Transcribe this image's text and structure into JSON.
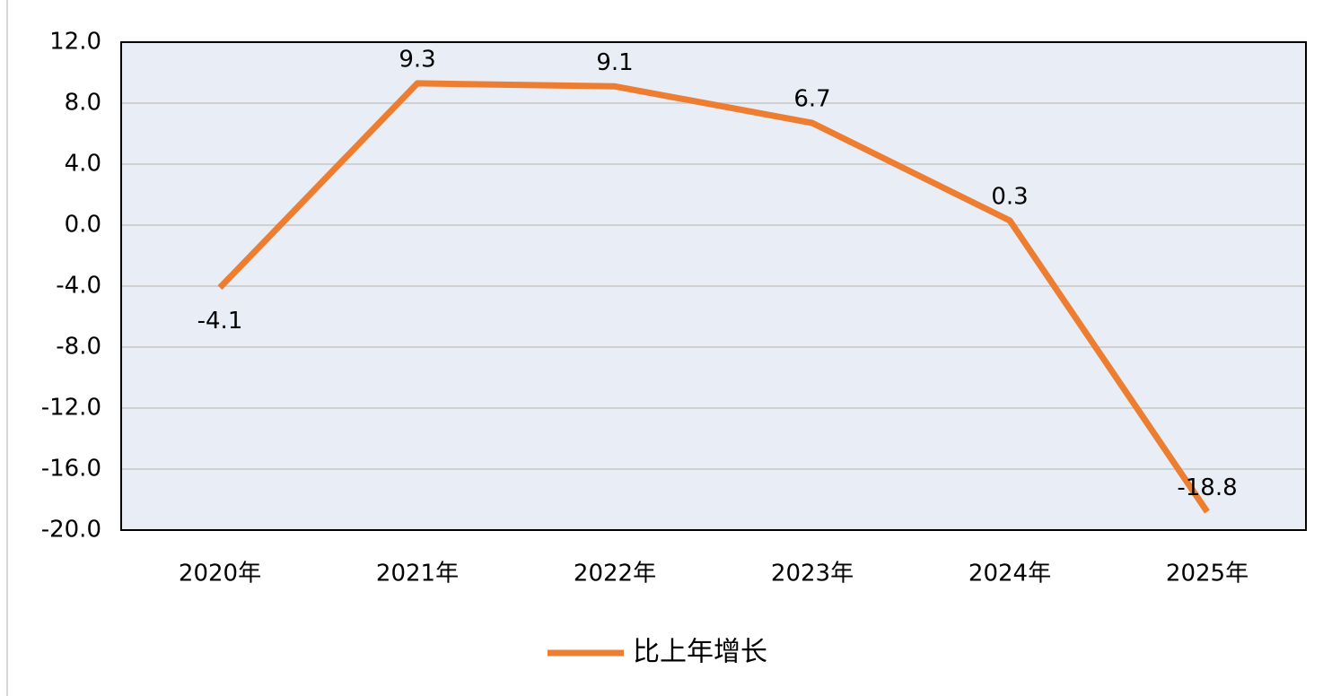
{
  "chart_data": {
    "type": "line",
    "categories": [
      "2020年",
      "2021年",
      "2022年",
      "2023年",
      "2024年",
      "2025年"
    ],
    "series": [
      {
        "name": "比上年增长",
        "color": "#ed7d31",
        "values": [
          -4.1,
          9.3,
          9.1,
          6.7,
          0.3,
          -18.8
        ]
      }
    ],
    "ylim": [
      -20,
      12
    ],
    "yticks": [
      {
        "value": -20,
        "label": "-20.0"
      },
      {
        "value": -16,
        "label": "-16.0"
      },
      {
        "value": -12,
        "label": "-12.0"
      },
      {
        "value": -8,
        "label": "-8.0"
      },
      {
        "value": -4,
        "label": "-4.0"
      },
      {
        "value": 0,
        "label": "0.0"
      },
      {
        "value": 4,
        "label": "4.0"
      },
      {
        "value": 8,
        "label": "8.0"
      },
      {
        "value": 12,
        "label": "12.0"
      }
    ],
    "grid": true,
    "legend": "bottom"
  }
}
